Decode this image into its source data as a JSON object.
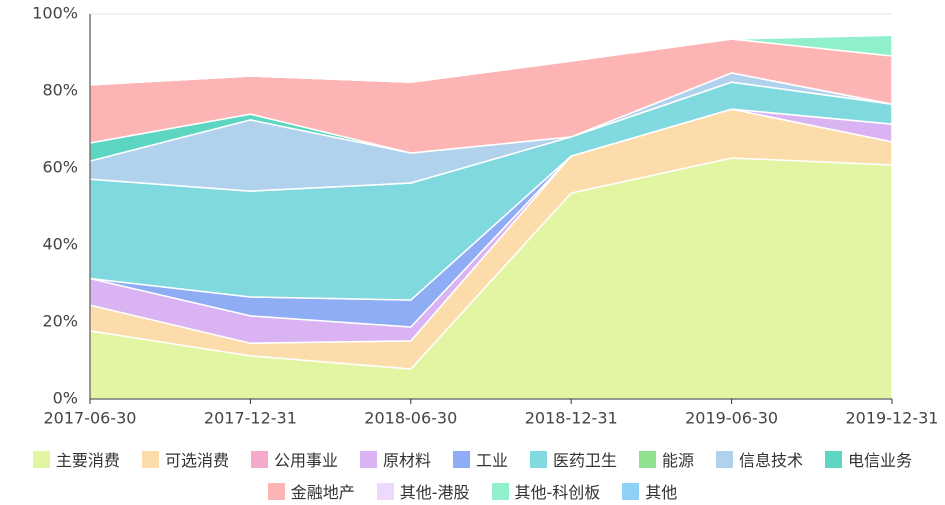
{
  "chart_data": {
    "type": "stacked_area",
    "categories": [
      "2017-06-30",
      "2017-12-31",
      "2018-06-30",
      "2018-12-31",
      "2019-06-30",
      "2019-12-31"
    ],
    "series": [
      {
        "name": "主要消费",
        "color": "#e1f5a2",
        "values": [
          17.7,
          11.2,
          7.8,
          53.5,
          62.6,
          60.8
        ]
      },
      {
        "name": "可选消费",
        "color": "#fcdcaa",
        "values": [
          6.7,
          3.3,
          7.3,
          9.6,
          12.7,
          6.0
        ]
      },
      {
        "name": "公用事业",
        "color": "#f5aacb",
        "values": [
          0,
          0,
          0,
          0,
          0,
          0
        ]
      },
      {
        "name": "原材料",
        "color": "#d9b3f2",
        "values": [
          6.9,
          7.1,
          3.6,
          0,
          0,
          4.6
        ]
      },
      {
        "name": "工业",
        "color": "#8fadf5",
        "values": [
          0,
          4.9,
          7.0,
          0,
          0,
          0
        ]
      },
      {
        "name": "医药卫生",
        "color": "#7fd9df",
        "values": [
          25.8,
          27.5,
          30.4,
          5.0,
          7.0,
          5.2
        ]
      },
      {
        "name": "能源",
        "color": "#8fe08f",
        "values": [
          0,
          0,
          0,
          0,
          0,
          0
        ]
      },
      {
        "name": "信息技术",
        "color": "#b0d2ec",
        "values": [
          4.7,
          18.5,
          7.8,
          0,
          2.4,
          0
        ]
      },
      {
        "name": "电信业务",
        "color": "#5cd6c0",
        "values": [
          4.7,
          1.5,
          0,
          0,
          0,
          0
        ]
      },
      {
        "name": "金融地产",
        "color": "#fdb4b4",
        "values": [
          15.1,
          9.9,
          18.4,
          19.7,
          8.8,
          12.5
        ]
      },
      {
        "name": "其他-港股",
        "color": "#ecd9fb",
        "values": [
          0,
          0,
          0,
          0,
          0,
          0
        ]
      },
      {
        "name": "其他-科创板",
        "color": "#90f0cc",
        "values": [
          0,
          0,
          0,
          0,
          0,
          5.4
        ]
      },
      {
        "name": "其他",
        "color": "#8fd1f5",
        "values": [
          0,
          0,
          0,
          0,
          0,
          0
        ]
      }
    ],
    "ylim": [
      0,
      100
    ],
    "yticks": [
      {
        "value": 0,
        "label": "0%"
      },
      {
        "value": 20,
        "label": "20%"
      },
      {
        "value": 40,
        "label": "40%"
      },
      {
        "value": 60,
        "label": "60%"
      },
      {
        "value": 80,
        "label": "80%"
      },
      {
        "value": 100,
        "label": "100%"
      }
    ],
    "grid": true
  }
}
